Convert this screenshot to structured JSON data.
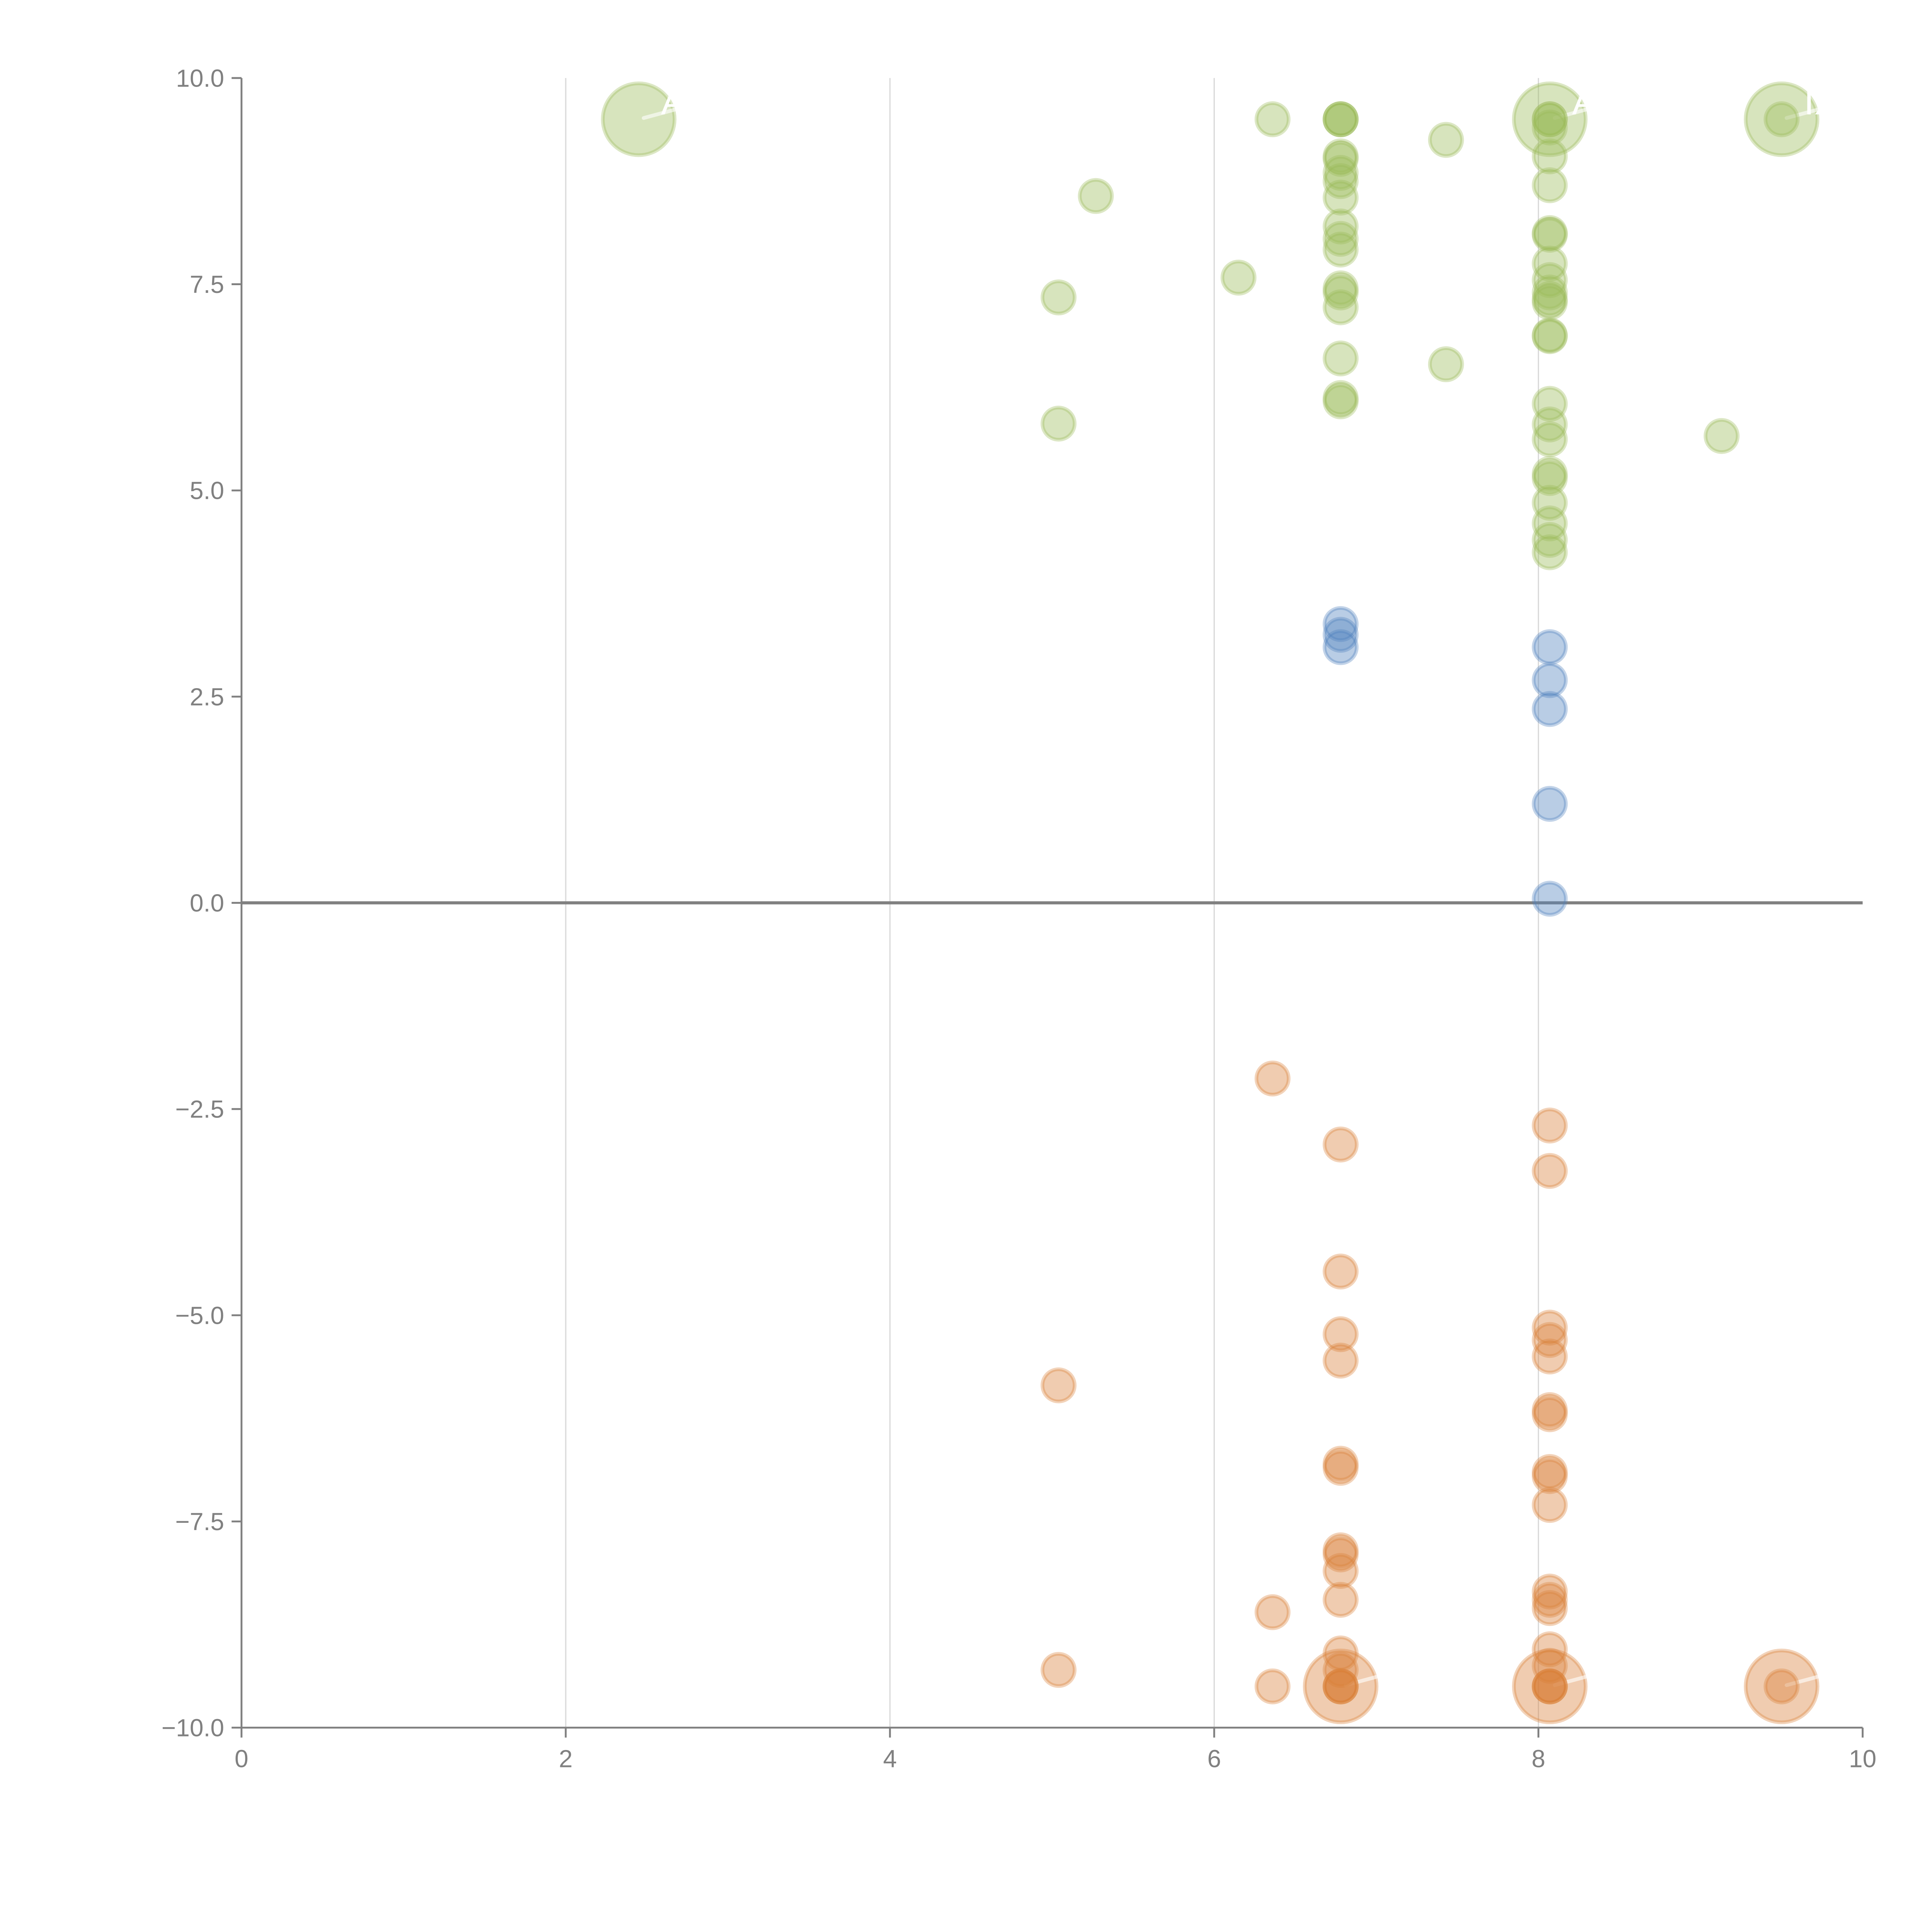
{
  "chart_data": {
    "type": "scatter",
    "title": "",
    "xlabel": "",
    "ylabel": "",
    "xlim": [
      0,
      10
    ],
    "ylim": [
      -10,
      10
    ],
    "x_ticks": [
      "0",
      "2",
      "4",
      "6",
      "8",
      "10"
    ],
    "y_ticks": [
      "10.0",
      "7.5",
      "5.0",
      "2.5",
      "0.0",
      "−2.5",
      "−5.0",
      "−7.5",
      "−10.0"
    ],
    "grid": "vertical",
    "legend": "none",
    "colors": {
      "green": "#9bbb59",
      "blue": "#4f81bd",
      "orange": "#d9803a"
    },
    "series": [
      {
        "name": "green",
        "color": "#9bbb59",
        "points": [
          {
            "x": 2.45,
            "y": 9.5,
            "size": 3,
            "label": "A"
          },
          {
            "x": 6.36,
            "y": 9.5
          },
          {
            "x": 5.27,
            "y": 8.57
          },
          {
            "x": 5.04,
            "y": 7.34
          },
          {
            "x": 6.15,
            "y": 7.58
          },
          {
            "x": 5.04,
            "y": 5.81
          },
          {
            "x": 7.43,
            "y": 9.25
          },
          {
            "x": 7.43,
            "y": 6.53
          },
          {
            "x": 9.13,
            "y": 5.66
          },
          {
            "x": 9.5,
            "y": 9.5,
            "size": 3,
            "label": "IX"
          },
          {
            "x": 9.5,
            "y": 9.5
          },
          {
            "x": 6.78,
            "y": 9.5
          },
          {
            "x": 6.78,
            "y": 9.5
          },
          {
            "x": 6.78,
            "y": 9.5
          },
          {
            "x": 6.78,
            "y": 9.05
          },
          {
            "x": 6.78,
            "y": 9.02
          },
          {
            "x": 6.78,
            "y": 8.85
          },
          {
            "x": 6.78,
            "y": 8.75
          },
          {
            "x": 6.78,
            "y": 8.55
          },
          {
            "x": 6.78,
            "y": 8.2
          },
          {
            "x": 6.78,
            "y": 8.05
          },
          {
            "x": 6.78,
            "y": 7.92
          },
          {
            "x": 6.78,
            "y": 7.45
          },
          {
            "x": 6.78,
            "y": 7.4
          },
          {
            "x": 6.78,
            "y": 7.22
          },
          {
            "x": 6.78,
            "y": 6.6
          },
          {
            "x": 6.78,
            "y": 6.12
          },
          {
            "x": 6.78,
            "y": 6.08
          },
          {
            "x": 8.07,
            "y": 9.5,
            "size": 3,
            "label": "A"
          },
          {
            "x": 8.07,
            "y": 9.5
          },
          {
            "x": 8.07,
            "y": 9.5
          },
          {
            "x": 8.07,
            "y": 9.4
          },
          {
            "x": 8.07,
            "y": 9.05
          },
          {
            "x": 8.07,
            "y": 8.7
          },
          {
            "x": 8.07,
            "y": 8.12
          },
          {
            "x": 8.07,
            "y": 8.1
          },
          {
            "x": 8.07,
            "y": 7.75
          },
          {
            "x": 8.07,
            "y": 7.55
          },
          {
            "x": 8.07,
            "y": 7.4
          },
          {
            "x": 8.07,
            "y": 7.32
          },
          {
            "x": 8.07,
            "y": 7.28
          },
          {
            "x": 8.07,
            "y": 6.88
          },
          {
            "x": 8.07,
            "y": 6.87
          },
          {
            "x": 8.07,
            "y": 6.05
          },
          {
            "x": 8.07,
            "y": 5.8
          },
          {
            "x": 8.07,
            "y": 5.62
          },
          {
            "x": 8.07,
            "y": 5.2
          },
          {
            "x": 8.07,
            "y": 5.15
          },
          {
            "x": 8.07,
            "y": 4.85
          },
          {
            "x": 8.07,
            "y": 4.6
          },
          {
            "x": 8.07,
            "y": 4.4
          },
          {
            "x": 8.07,
            "y": 4.25
          }
        ]
      },
      {
        "name": "blue",
        "color": "#4f81bd",
        "points": [
          {
            "x": 6.78,
            "y": 3.38
          },
          {
            "x": 6.78,
            "y": 3.25
          },
          {
            "x": 6.78,
            "y": 3.1
          },
          {
            "x": 8.07,
            "y": 3.1
          },
          {
            "x": 8.07,
            "y": 2.7
          },
          {
            "x": 8.07,
            "y": 2.35
          },
          {
            "x": 8.07,
            "y": 1.2
          },
          {
            "x": 8.07,
            "y": 0.05
          }
        ]
      },
      {
        "name": "orange",
        "color": "#d9803a",
        "points": [
          {
            "x": 6.36,
            "y": -2.13
          },
          {
            "x": 6.78,
            "y": -2.93
          },
          {
            "x": 8.07,
            "y": -2.7
          },
          {
            "x": 8.07,
            "y": -3.25
          },
          {
            "x": 6.78,
            "y": -4.47
          },
          {
            "x": 6.78,
            "y": -5.23
          },
          {
            "x": 6.78,
            "y": -5.55
          },
          {
            "x": 5.04,
            "y": -5.85
          },
          {
            "x": 8.07,
            "y": -5.15
          },
          {
            "x": 8.07,
            "y": -5.3
          },
          {
            "x": 8.07,
            "y": -5.5
          },
          {
            "x": 8.07,
            "y": -6.15
          },
          {
            "x": 8.07,
            "y": -6.2
          },
          {
            "x": 6.78,
            "y": -6.8
          },
          {
            "x": 6.78,
            "y": -6.85
          },
          {
            "x": 8.07,
            "y": -6.9
          },
          {
            "x": 8.07,
            "y": -6.95
          },
          {
            "x": 8.07,
            "y": -7.3
          },
          {
            "x": 6.78,
            "y": -7.85
          },
          {
            "x": 6.78,
            "y": -7.9
          },
          {
            "x": 6.78,
            "y": -8.1
          },
          {
            "x": 6.78,
            "y": -8.45
          },
          {
            "x": 6.36,
            "y": -8.6
          },
          {
            "x": 8.07,
            "y": -8.35
          },
          {
            "x": 8.07,
            "y": -8.45
          },
          {
            "x": 8.07,
            "y": -8.55
          },
          {
            "x": 5.04,
            "y": -9.3
          },
          {
            "x": 6.78,
            "y": -9.1
          },
          {
            "x": 6.78,
            "y": -9.3
          },
          {
            "x": 6.78,
            "y": -9.5
          },
          {
            "x": 6.78,
            "y": -9.5
          },
          {
            "x": 6.78,
            "y": -9.5
          },
          {
            "x": 6.36,
            "y": -9.5
          },
          {
            "x": 8.07,
            "y": -9.05
          },
          {
            "x": 8.07,
            "y": -9.25
          },
          {
            "x": 8.07,
            "y": -9.5
          },
          {
            "x": 8.07,
            "y": -9.5
          },
          {
            "x": 8.07,
            "y": -9.5
          },
          {
            "x": 6.78,
            "y": -9.5,
            "size": 3
          },
          {
            "x": 8.07,
            "y": -9.5,
            "size": 3
          },
          {
            "x": 9.5,
            "y": -9.5,
            "size": 3
          },
          {
            "x": 9.5,
            "y": -9.5
          }
        ]
      }
    ]
  }
}
